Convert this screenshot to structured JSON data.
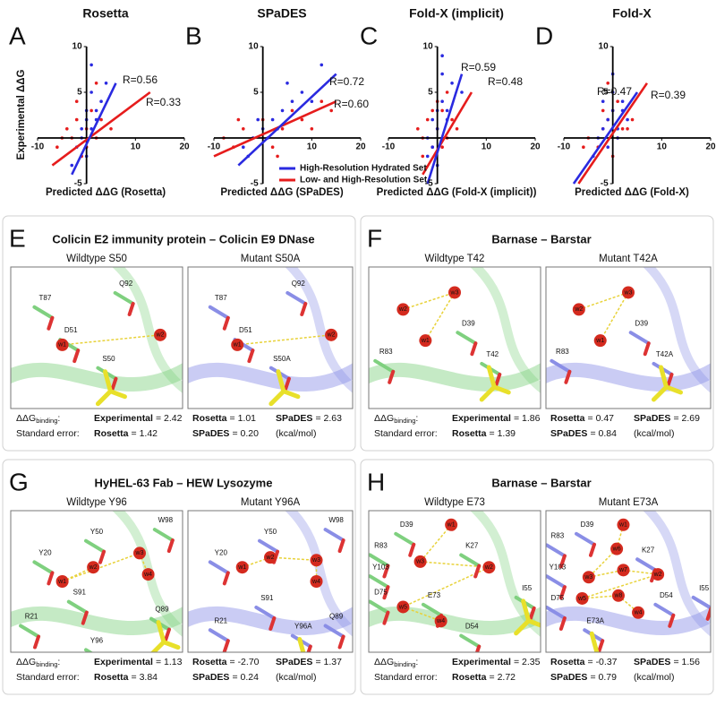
{
  "chart_data": [
    {
      "type": "scatter",
      "letter": "A",
      "title": "Rosetta",
      "xlabel": "Predicted ΔΔG (Rosetta)",
      "ylabel": "Experimental ΔΔG",
      "xlim": [
        -10,
        20
      ],
      "ylim": [
        -5,
        10
      ],
      "xticks": [
        -10,
        10,
        20
      ],
      "yticks": [
        -5,
        5,
        10
      ],
      "series": [
        {
          "color": "#e61c1c",
          "r_label": "R=0.33",
          "x": [
            -6,
            -4,
            -3,
            -2,
            -1,
            0,
            1,
            2,
            3,
            -5,
            0,
            2,
            5,
            -2
          ],
          "y": [
            -1,
            1,
            0,
            2,
            -2,
            1,
            3,
            0,
            2,
            0,
            -1,
            6,
            1,
            4
          ],
          "fit_x": [
            -7,
            13
          ],
          "fit_y": [
            -3,
            5
          ]
        },
        {
          "color": "#2a2ae0",
          "r_label": "R=0.56",
          "x": [
            -2,
            -1,
            0,
            1,
            2,
            3,
            -1,
            0,
            1,
            2,
            4,
            0,
            -3,
            1
          ],
          "y": [
            -1,
            0,
            2,
            1,
            3,
            4,
            1,
            -2,
            5,
            2,
            6,
            3,
            -3,
            8
          ],
          "fit_x": [
            -3,
            6
          ],
          "fit_y": [
            -4,
            6
          ]
        }
      ]
    },
    {
      "type": "scatter",
      "letter": "B",
      "title": "SPaDES",
      "xlabel": "Predicted ΔΔG (SPaDES)",
      "xlim": [
        -10,
        20
      ],
      "ylim": [
        -5,
        10
      ],
      "xticks": [
        -10,
        10,
        20
      ],
      "yticks": [
        -5,
        5,
        10
      ],
      "series": [
        {
          "color": "#e61c1c",
          "r_label": "R=0.60",
          "x": [
            -8,
            -6,
            -4,
            -2,
            0,
            2,
            4,
            6,
            8,
            10,
            12,
            -5,
            3,
            14
          ],
          "y": [
            0,
            -1,
            1,
            0,
            2,
            -1,
            1,
            3,
            2,
            1,
            4,
            2,
            -2,
            3
          ],
          "fit_x": [
            -10,
            15
          ],
          "fit_y": [
            -2,
            4
          ]
        },
        {
          "color": "#2a2ae0",
          "r_label": "R=0.72",
          "x": [
            -4,
            -2,
            0,
            2,
            4,
            6,
            8,
            3,
            1,
            -1,
            5,
            10,
            12,
            -3
          ],
          "y": [
            -1,
            0,
            1,
            2,
            3,
            4,
            5,
            1,
            0,
            2,
            6,
            4,
            8,
            -2
          ],
          "fit_x": [
            -5,
            15
          ],
          "fit_y": [
            -3,
            7
          ]
        }
      ]
    },
    {
      "type": "scatter",
      "letter": "C",
      "title": "Fold-X (implicit)",
      "xlabel": "Predicted ΔΔG (Fold-X (implicit))",
      "xlim": [
        -10,
        20
      ],
      "ylim": [
        -5,
        10
      ],
      "xticks": [
        -10,
        10,
        20
      ],
      "yticks": [
        -5,
        5,
        10
      ],
      "series": [
        {
          "color": "#e61c1c",
          "r_label": "R=0.48",
          "x": [
            -4,
            -3,
            -2,
            -1,
            0,
            1,
            2,
            3,
            -3,
            0,
            1,
            4,
            -1,
            2
          ],
          "y": [
            1,
            0,
            2,
            -1,
            1,
            3,
            0,
            2,
            -2,
            4,
            -1,
            1,
            3,
            5
          ],
          "fit_x": [
            -3,
            7
          ],
          "fit_y": [
            -4,
            5
          ]
        },
        {
          "color": "#2a2ae0",
          "r_label": "R=0.59",
          "x": [
            -2,
            -1,
            0,
            1,
            2,
            3,
            -1,
            0,
            1,
            2,
            5,
            0,
            -2,
            1
          ],
          "y": [
            0,
            2,
            1,
            4,
            3,
            6,
            -1,
            -3,
            7,
            2,
            5,
            3,
            -2,
            9
          ],
          "fit_x": [
            -2,
            5
          ],
          "fit_y": [
            -5,
            7
          ]
        }
      ]
    },
    {
      "type": "scatter",
      "letter": "D",
      "title": "Fold-X",
      "xlabel": "Predicted ΔΔG (Fold-X)",
      "xlim": [
        -10,
        20
      ],
      "ylim": [
        -5,
        10
      ],
      "xticks": [
        -10,
        10,
        20
      ],
      "yticks": [
        -5,
        5,
        10
      ],
      "series": [
        {
          "color": "#e61c1c",
          "r_label": "R=0.39",
          "x": [
            -5,
            -3,
            -2,
            -1,
            0,
            1,
            2,
            4,
            -2,
            0,
            1,
            3,
            -6,
            -1
          ],
          "y": [
            0,
            -1,
            1,
            2,
            3,
            0,
            1,
            2,
            3,
            -2,
            4,
            1,
            -1,
            6
          ],
          "fit_x": [
            -7,
            7
          ],
          "fit_y": [
            -5,
            6
          ]
        },
        {
          "color": "#2a2ae0",
          "r_label": "R=0.47",
          "x": [
            -3,
            -2,
            -1,
            0,
            1,
            2,
            3,
            -1,
            0,
            1,
            -4,
            0,
            2,
            -2
          ],
          "y": [
            0,
            1,
            2,
            3,
            1,
            4,
            2,
            -1,
            5,
            0,
            -2,
            7,
            3,
            4
          ],
          "fit_x": [
            -8,
            5
          ],
          "fit_y": [
            -5,
            5
          ]
        }
      ]
    }
  ],
  "legend": [
    {
      "name": "High-Resolution Hydrated Set",
      "color": "#2a2ae0"
    },
    {
      "name": "Low- and High-Resolution Set",
      "color": "#e61c1c"
    }
  ],
  "panels": [
    {
      "letter": "E",
      "title": "Colicin E2 immunity protein – Colicin E9 DNase",
      "images": [
        {
          "caption": "Wildtype S50",
          "labels": [
            "T87",
            "Q92",
            "D51",
            "w1",
            "w2",
            "S50"
          ]
        },
        {
          "caption": "Mutant S50A",
          "labels": [
            "T87",
            "Q92",
            "D51",
            "w1",
            "w2",
            "S50A"
          ]
        }
      ],
      "energy": {
        "ddg": "ΔΔG",
        "sub": "binding",
        "colon": ":",
        "se": "Standard error:",
        "unit": "(kcal/mol)",
        "rows": [
          [
            [
              "Experimental",
              "= 2.42"
            ],
            [
              "Rosetta",
              "= 1.01"
            ],
            [
              "SPaDES",
              "= 2.63"
            ]
          ],
          [
            [
              "Rosetta",
              "= 1.42"
            ],
            [
              "SPaDES",
              "= 0.20"
            ]
          ]
        ]
      }
    },
    {
      "letter": "F",
      "title": "Barnase – Barstar",
      "images": [
        {
          "caption": "Wildtype T42",
          "labels": [
            "w2",
            "w3",
            "D39",
            "w1",
            "R83",
            "T42"
          ]
        },
        {
          "caption": "Mutant T42A",
          "labels": [
            "w2",
            "w3",
            "D39",
            "w1",
            "R83",
            "T42A"
          ]
        }
      ],
      "energy": {
        "ddg": "ΔΔG",
        "sub": "binding",
        "colon": ":",
        "se": "Standard error:",
        "unit": "(kcal/mol)",
        "rows": [
          [
            [
              "Experimental",
              "= 1.86"
            ],
            [
              "Rosetta",
              "= 0.47"
            ],
            [
              "SPaDES",
              "= 2.69"
            ]
          ],
          [
            [
              "Rosetta",
              "= 1.39"
            ],
            [
              "SPaDES",
              "= 0.84"
            ]
          ]
        ]
      }
    },
    {
      "letter": "G",
      "title": "HyHEL-63 Fab – HEW Lysozyme",
      "images": [
        {
          "caption": "Wildtype Y96",
          "labels": [
            "Y50",
            "W98",
            "Y20",
            "w2",
            "w1",
            "w3",
            "w4",
            "S91",
            "R21",
            "Y96",
            "Q89"
          ]
        },
        {
          "caption": "Mutant Y96A",
          "labels": [
            "Y50",
            "W98",
            "Y20",
            "w1",
            "w2",
            "w3",
            "w4",
            "S91",
            "R21",
            "Y96A",
            "Q89"
          ]
        }
      ],
      "energy": {
        "ddg": "ΔΔG",
        "sub": "binding",
        "colon": ":",
        "se": "Standard error:",
        "unit": "(kcal/mol)",
        "rows": [
          [
            [
              "Experimental",
              "= 1.13"
            ],
            [
              "Rosetta",
              "= -2.70"
            ],
            [
              "SPaDES",
              "= 1.37"
            ]
          ],
          [
            [
              "Rosetta",
              "= 3.84"
            ],
            [
              "SPaDES",
              "= 0.24"
            ]
          ]
        ]
      }
    },
    {
      "letter": "H",
      "title": "Barnase – Barstar",
      "images": [
        {
          "caption": "Wildtype E73",
          "labels": [
            "D39",
            "R83",
            "w1",
            "K27",
            "Y103",
            "w3",
            "w2",
            "D75",
            "w5",
            "E73",
            "w4",
            "D54",
            "I55"
          ]
        },
        {
          "caption": "Mutant E73A",
          "labels": [
            "D39",
            "R83",
            "w1",
            "K27",
            "Y103",
            "w6",
            "w3",
            "w7",
            "w2",
            "D75",
            "w5",
            "w8",
            "w4",
            "D54",
            "I55",
            "E73A"
          ]
        }
      ],
      "energy": {
        "ddg": "ΔΔG",
        "sub": "binding",
        "colon": ":",
        "se": "Standard error:",
        "unit": "(kcal/mol)",
        "rows": [
          [
            [
              "Experimental",
              "= 2.35"
            ],
            [
              "Rosetta",
              "= -0.37"
            ],
            [
              "SPaDES",
              "= 1.56"
            ]
          ],
          [
            [
              "Rosetta",
              "= 2.72"
            ],
            [
              "SPaDES",
              "= 0.79"
            ]
          ]
        ]
      }
    }
  ]
}
